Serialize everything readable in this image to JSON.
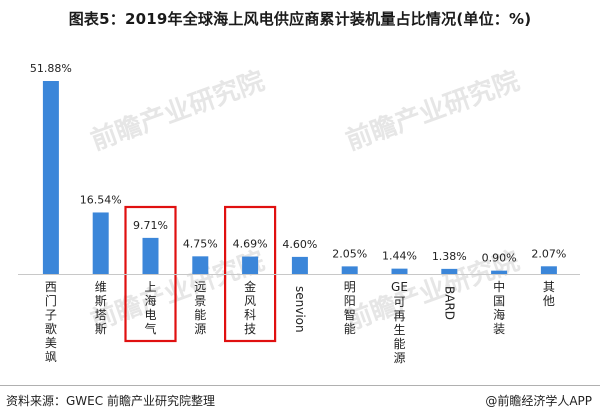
{
  "title": "图表5：2019年全球海上风电供应商累计装机量占比情况(单位：%)",
  "footer": {
    "source": "资料来源：GWEC 前瞻产业研究院整理",
    "credit": "@前瞻经济学人APP"
  },
  "watermark": "前瞻产业研究院",
  "colors": {
    "bar": "#3b86d9",
    "highlight_box": "#e01010",
    "axis": "#c8c8c8"
  },
  "chart_data": {
    "type": "bar",
    "title": "图表5：2019年全球海上风电供应商累计装机量占比情况(单位：%)",
    "xlabel": "",
    "ylabel": "",
    "ylim": [
      0,
      55
    ],
    "grid": false,
    "categories": [
      "西门子歌美飒",
      "维斯塔斯",
      "上海电气",
      "远景能源",
      "金风科技",
      "senvion",
      "明阳智能",
      "GE可再生能源",
      "BARD",
      "中国海装",
      "其他"
    ],
    "values": [
      51.88,
      16.54,
      9.71,
      4.75,
      4.69,
      4.6,
      2.05,
      1.44,
      1.38,
      0.9,
      2.07
    ],
    "value_labels": [
      "51.88%",
      "16.54%",
      "9.71%",
      "4.75%",
      "4.69%",
      "4.60%",
      "2.05%",
      "1.44%",
      "1.38%",
      "0.90%",
      "2.07%"
    ],
    "highlighted": [
      "上海电气",
      "金风科技"
    ]
  }
}
